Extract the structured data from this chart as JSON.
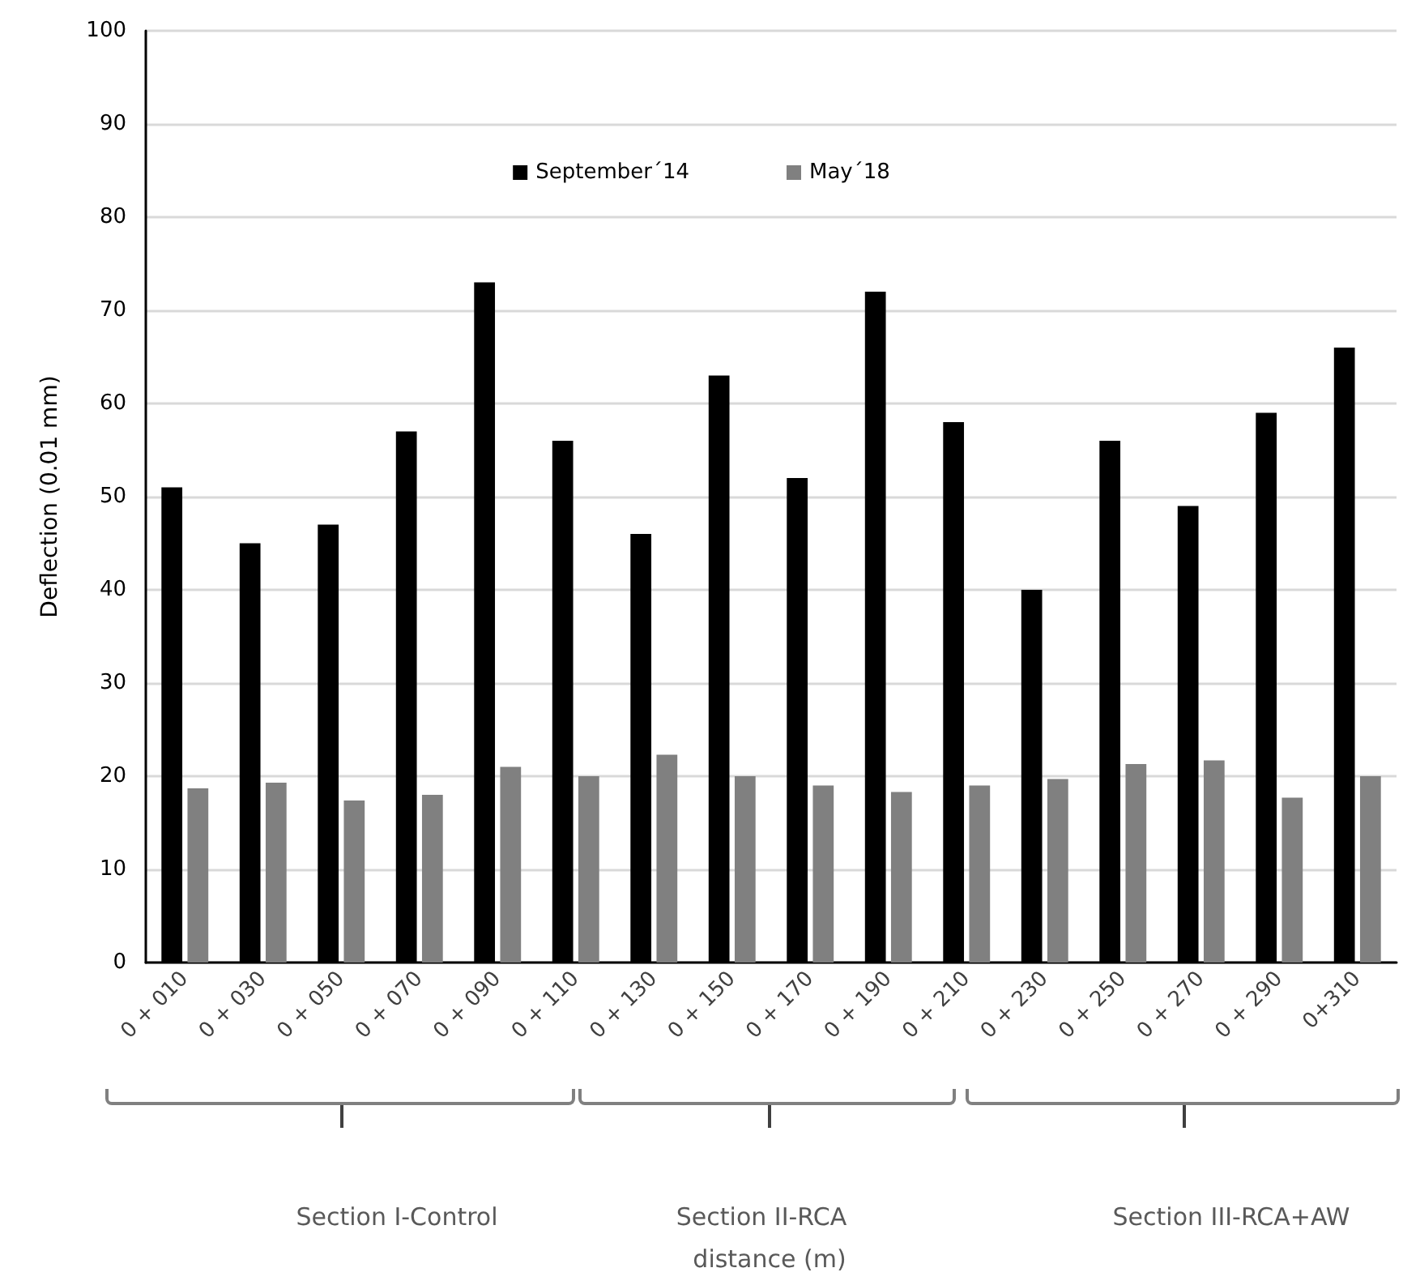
{
  "chart_data": {
    "type": "bar",
    "ylabel": "Deflection (0.01 mm)",
    "categories": [
      "0 + 010",
      "0 + 030",
      "0 + 050",
      "0 + 070",
      "0 + 090",
      "0 + 110",
      "0 + 130",
      "0 + 150",
      "0 + 170",
      "0 + 190",
      "0 + 210",
      "0 + 230",
      "0 + 250",
      "0 + 270",
      "0 + 290",
      "0+310"
    ],
    "series": [
      {
        "name": "September´14",
        "color": "#000000",
        "values": [
          51,
          45,
          47,
          57,
          73,
          56,
          46,
          63,
          52,
          72,
          58,
          40,
          56,
          49,
          59,
          66
        ]
      },
      {
        "name": "May´18",
        "color": "#808080",
        "values": [
          18.7,
          19.3,
          17.4,
          18,
          21,
          20,
          22.3,
          20,
          19,
          18.3,
          19,
          19.7,
          21.3,
          21.7,
          17.7,
          20
        ]
      }
    ],
    "ylim": [
      0,
      100
    ],
    "yticks": [
      0,
      10,
      20,
      30,
      40,
      50,
      60,
      70,
      80,
      90,
      100
    ],
    "grid": "y",
    "legend": "top",
    "annotations": [
      "Section I-Control",
      "Section II-RCA",
      "Section III-RCA+AW",
      "distance (m)"
    ]
  }
}
